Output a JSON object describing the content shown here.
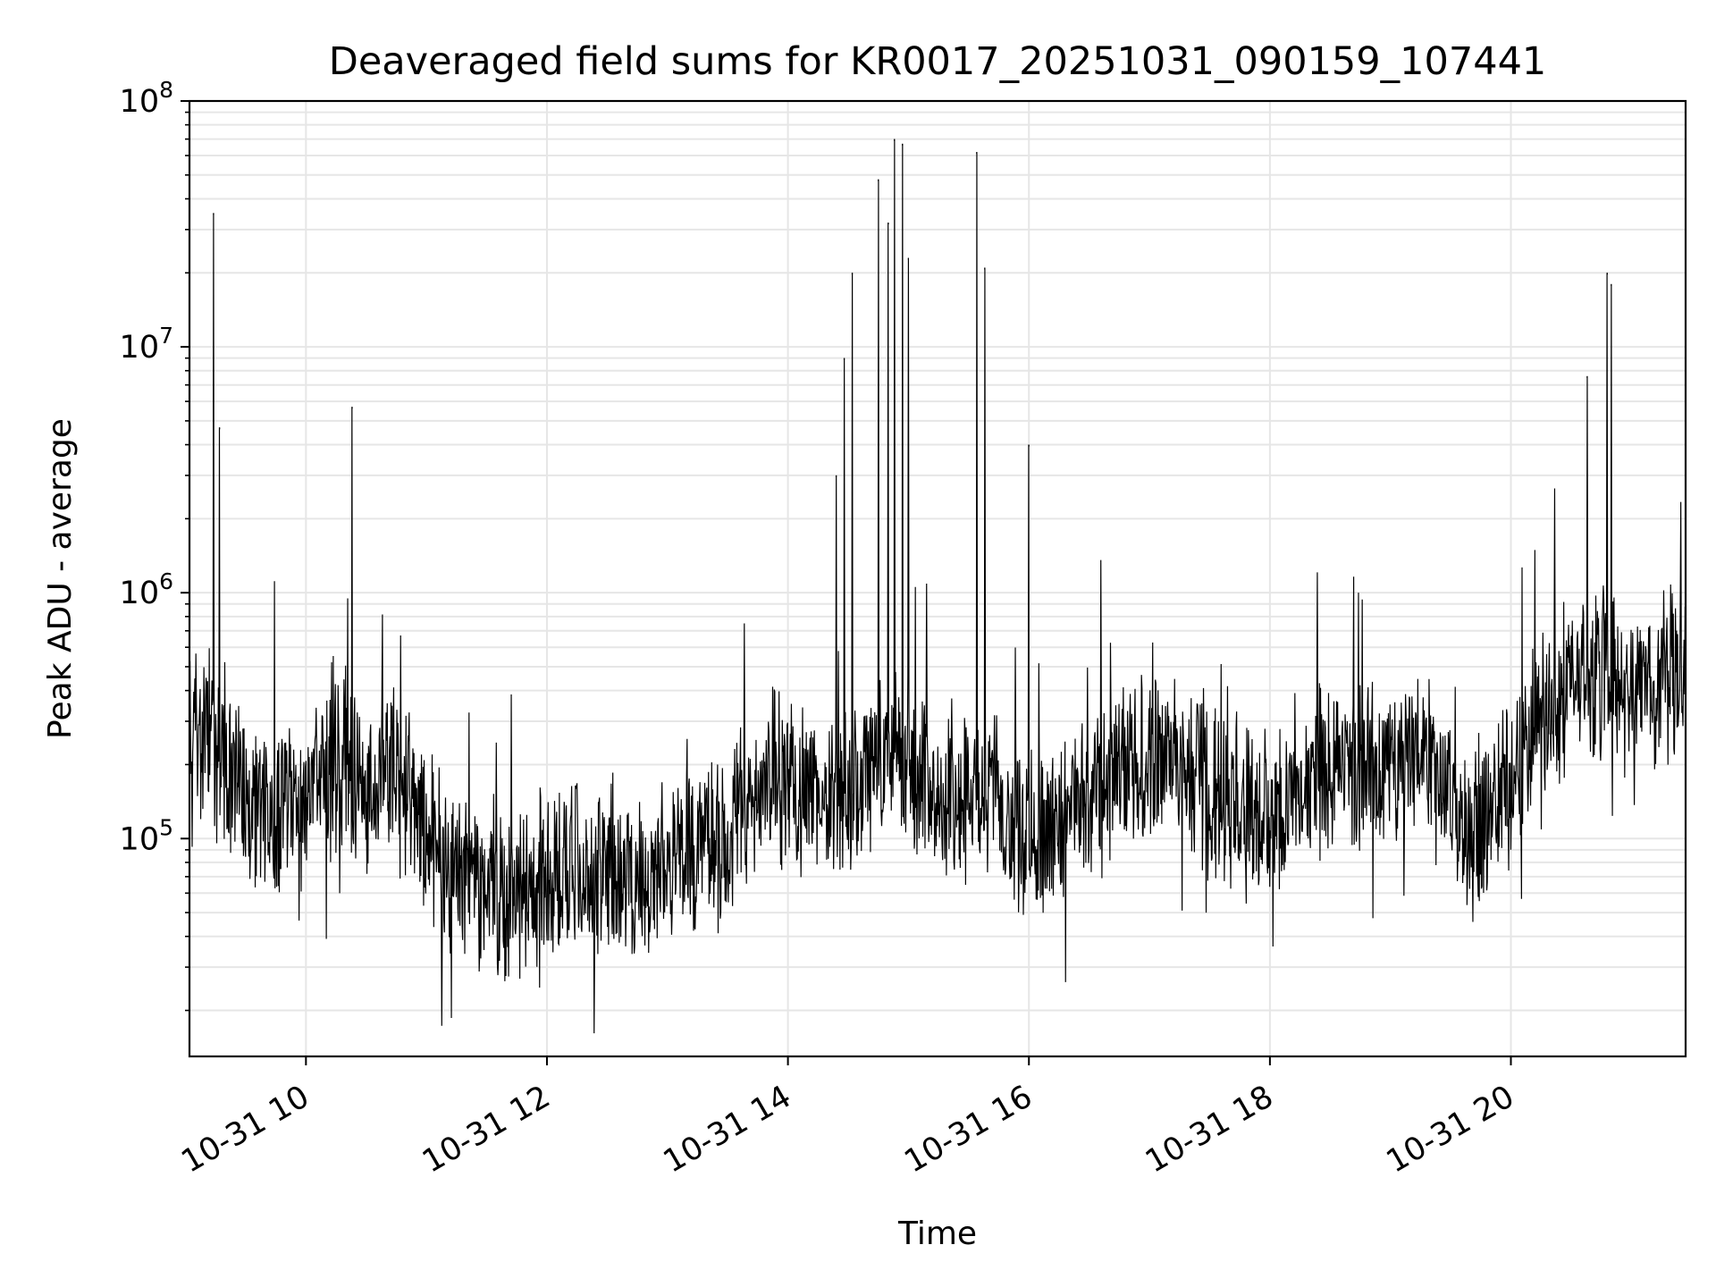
{
  "chart_data": {
    "type": "line",
    "title": "Deaveraged field sums for KR0017_20251031_090159_107441",
    "xlabel": "Time",
    "ylabel": "Peak ADU - average",
    "yscale": "log",
    "ylim": [
      13000,
      100000000
    ],
    "xlim": [
      "2025-10-31 09:02",
      "2025-10-31 21:27"
    ],
    "x_ticks": [
      "10-31 10",
      "10-31 12",
      "10-31 14",
      "10-31 16",
      "10-31 18",
      "10-31 20"
    ],
    "y_ticks": [
      {
        "base": "10",
        "exp": "5",
        "value": 100000
      },
      {
        "base": "10",
        "exp": "6",
        "value": 1000000
      },
      {
        "base": "10",
        "exp": "7",
        "value": 10000000
      },
      {
        "base": "10",
        "exp": "8",
        "value": 100000000
      }
    ],
    "grid": true,
    "series": [
      {
        "line_color": "#000000",
        "x": [
          "2025-10-31 09:02",
          "2025-10-31 09:05",
          "2025-10-31 09:09",
          "2025-10-31 09:10",
          "2025-10-31 09:15",
          "2025-10-31 09:20",
          "2025-10-31 09:25",
          "2025-10-31 09:30",
          "2025-10-31 09:35",
          "2025-10-31 09:42",
          "2025-10-31 09:48",
          "2025-10-31 09:55",
          "2025-10-31 10:00",
          "2025-10-31 10:10",
          "2025-10-31 10:15",
          "2025-10-31 10:20",
          "2025-10-31 10:23",
          "2025-10-31 10:28",
          "2025-10-31 10:35",
          "2025-10-31 10:45",
          "2025-10-31 10:50",
          "2025-10-31 10:55",
          "2025-10-31 11:05",
          "2025-10-31 11:08",
          "2025-10-31 11:12",
          "2025-10-31 11:20",
          "2025-10-31 11:30",
          "2025-10-31 11:38",
          "2025-10-31 11:45",
          "2025-10-31 11:55",
          "2025-10-31 12:00",
          "2025-10-31 12:15",
          "2025-10-31 12:30",
          "2025-10-31 12:45",
          "2025-10-31 13:00",
          "2025-10-31 13:15",
          "2025-10-31 13:30",
          "2025-10-31 13:40",
          "2025-10-31 13:50",
          "2025-10-31 14:00",
          "2025-10-31 14:10",
          "2025-10-31 14:20",
          "2025-10-31 14:30",
          "2025-10-31 14:35",
          "2025-10-31 14:40",
          "2025-10-31 14:45",
          "2025-10-31 14:52",
          "2025-10-31 14:55",
          "2025-10-31 15:00",
          "2025-10-31 15:05",
          "2025-10-31 15:10",
          "2025-10-31 15:20",
          "2025-10-31 15:30",
          "2025-10-31 15:33",
          "2025-10-31 15:37",
          "2025-10-31 15:45",
          "2025-10-31 16:00",
          "2025-10-31 16:05",
          "2025-10-31 16:15",
          "2025-10-31 16:30",
          "2025-10-31 16:45",
          "2025-10-31 17:00",
          "2025-10-31 17:15",
          "2025-10-31 17:30",
          "2025-10-31 17:45",
          "2025-10-31 18:00",
          "2025-10-31 18:15",
          "2025-10-31 18:30",
          "2025-10-31 18:45",
          "2025-10-31 19:00",
          "2025-10-31 19:10",
          "2025-10-31 19:20",
          "2025-10-31 19:30",
          "2025-10-31 19:45",
          "2025-10-31 20:00",
          "2025-10-31 20:15",
          "2025-10-31 20:30",
          "2025-10-31 20:45",
          "2025-10-31 20:55",
          "2025-10-31 21:00",
          "2025-10-31 21:05",
          "2025-10-31 21:15",
          "2025-10-31 21:27"
        ],
        "y": [
          180000,
          280000,
          250000,
          350000,
          220000,
          200000,
          180000,
          150000,
          130000,
          120000,
          140000,
          130000,
          150000,
          180000,
          200000,
          220000,
          180000,
          160000,
          170000,
          180000,
          150000,
          130000,
          100000,
          60000,
          65000,
          70000,
          60000,
          55000,
          60000,
          65000,
          70000,
          75000,
          70000,
          65000,
          80000,
          90000,
          110000,
          150000,
          200000,
          170000,
          150000,
          140000,
          150000,
          160000,
          180000,
          200000,
          220000,
          250000,
          220000,
          180000,
          160000,
          140000,
          150000,
          200000,
          160000,
          140000,
          110000,
          100000,
          120000,
          150000,
          180000,
          220000,
          200000,
          160000,
          130000,
          120000,
          150000,
          200000,
          180000,
          200000,
          220000,
          250000,
          130000,
          100000,
          180000,
          300000,
          450000,
          500000,
          450000,
          380000,
          400000,
          450000,
          500000
        ]
      }
    ],
    "spikes": {
      "x": [
        "2025-10-31 09:14",
        "2025-10-31 09:17",
        "2025-10-31 10:23",
        "2025-10-31 14:24",
        "2025-10-31 14:28",
        "2025-10-31 14:32",
        "2025-10-31 14:45",
        "2025-10-31 14:50",
        "2025-10-31 14:53",
        "2025-10-31 14:57",
        "2025-10-31 15:00",
        "2025-10-31 15:34",
        "2025-10-31 15:38",
        "2025-10-31 16:00",
        "2025-10-31 20:38",
        "2025-10-31 20:48",
        "2025-10-31 20:50"
      ],
      "y": [
        35000000,
        4700000,
        5700000,
        3000000,
        9000000,
        20000000,
        48000000,
        32000000,
        70000000,
        67000000,
        23000000,
        62000000,
        21000000,
        4000000,
        7600000,
        20000000,
        18000000
      ]
    }
  }
}
